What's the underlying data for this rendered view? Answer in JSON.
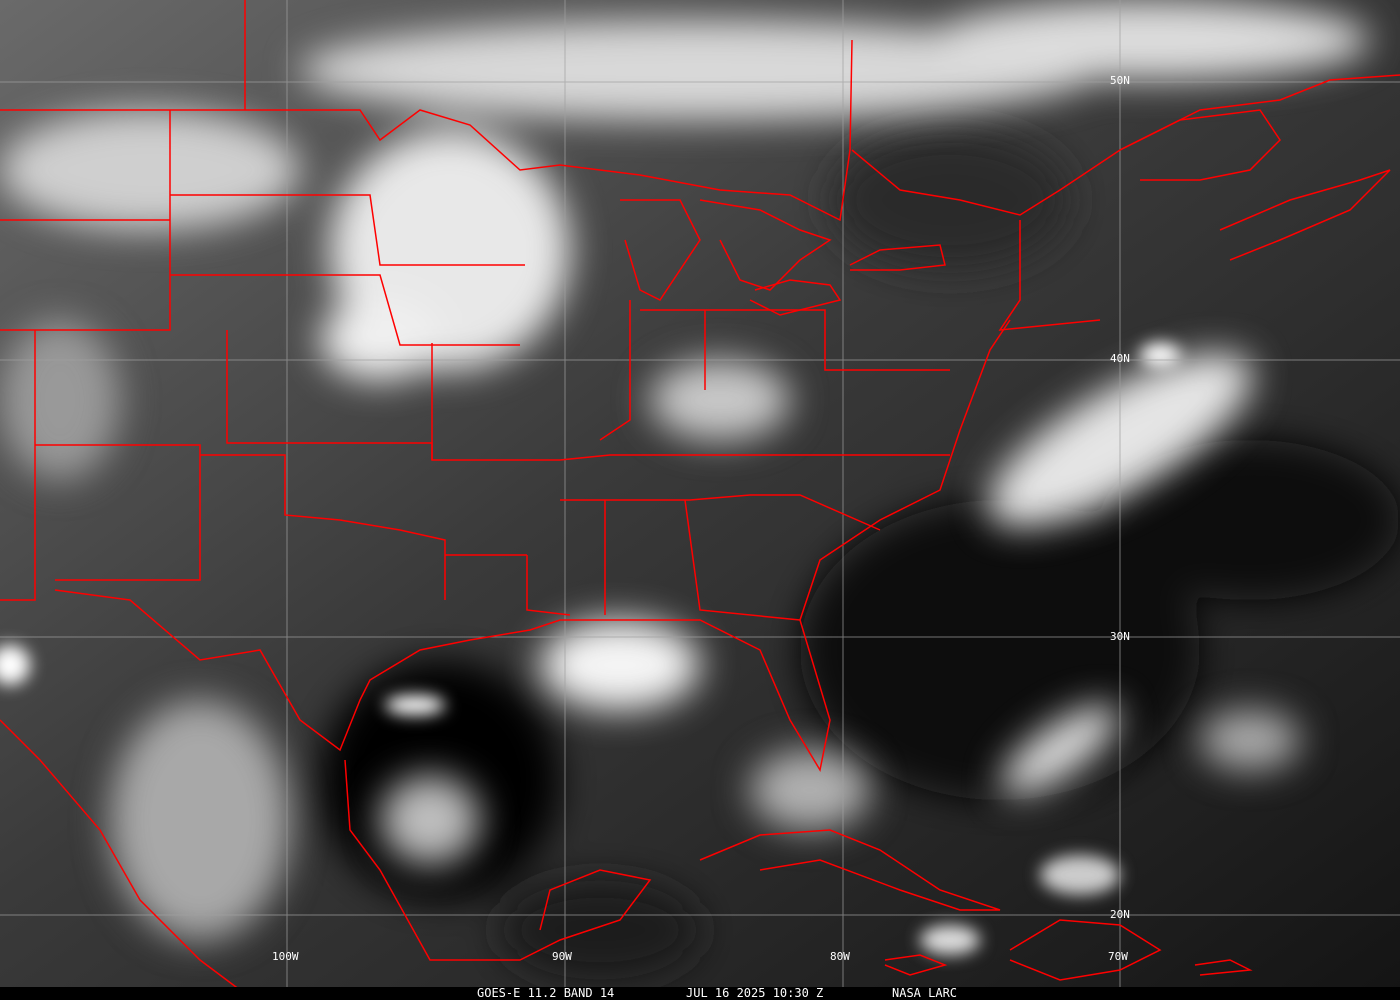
{
  "caption": {
    "satellite": "GOES-E 11.2 BAND 14",
    "datetime": "JUL 16 2025 10:30 Z",
    "source": "NASA LARC"
  },
  "grid": {
    "longitudes": [
      "100W",
      "90W",
      "80W",
      "70W"
    ],
    "latitudes": [
      "50N",
      "40N",
      "30N",
      "20N"
    ]
  },
  "colors": {
    "borders": "#ff0000",
    "grid": "#a0a0a0",
    "background": "#000000"
  }
}
